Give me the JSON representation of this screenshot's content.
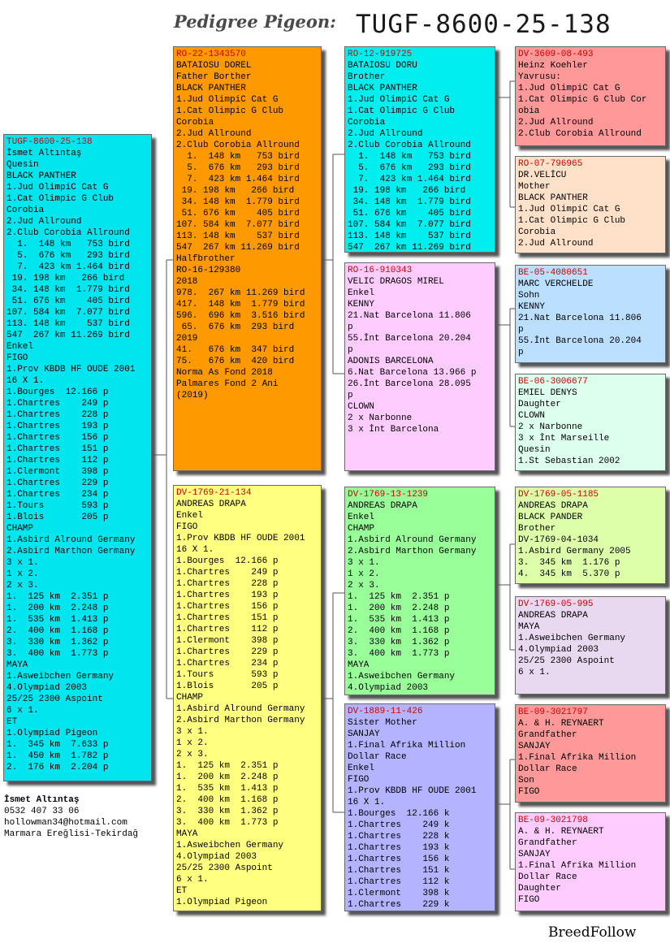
{
  "header": {
    "label": "Pedigree Pigeon:",
    "ring": "TUGF-8600-25-138"
  },
  "boxes": [
    {
      "id": "subject",
      "color": "#00e5ee",
      "ring": "TUGF-8600-25-138",
      "lines": [
        "İsmet Altıntaş",
        "Quesin",
        "BLACK PANTHER",
        "1.Jud OlimpiC Cat G",
        "1.Cat Olimpic G Club",
        "Corobia",
        "2.Jud Allround",
        "2.Club Corobia Allround",
        "  1.  148 km   753 bird",
        "  5.  676 km   293 bird",
        "  7.  423 km 1.464 bird",
        " 19. 198 km   266 bird",
        " 34. 148 km  1.779 bird",
        " 51. 676 km    405 bird",
        "107. 584 km  7.077 bird",
        "113. 148 km    537 bird",
        "547  267 km 11.269 bird",
        "Enkel",
        "FIGO",
        "1.Prov KBDB HF OUDE 2001",
        "16 X 1.",
        "1.Bourges  12.166 p",
        "1.Chartres    249 p",
        "1.Chartres    228 p",
        "1.Chartres    193 p",
        "1.Chartres    156 p",
        "1.Chartres    151 p",
        "1.Chartres    112 p",
        "1.Clermont    398 p",
        "1.Chartres    229 p",
        "1.Chartres    234 p",
        "1.Tours       593 p",
        "1.Blois       205 p",
        "CHAMP",
        "1.Asbird Alround Germany",
        "2.Asbird Marthon Germany",
        "3 x 1.",
        "1 x 2.",
        "2 x 3.",
        "1.  125 km  2.351 p",
        "1.  200 km  2.248 p",
        "1.  535 km  1.413 p",
        "2.  400 km  1.168 p",
        "3.  330 km  1.362 p",
        "3.  400 km  1.773 p",
        "MAYA",
        "1.Asweibchen Germany",
        "4.Olympiad 2003",
        "25/25 2300 Aspoint",
        "6 x 1.",
        "ET",
        "1.Olympiad Pigeon",
        "1.  345 km  7.633 p",
        "1.  450 km  1.782 p",
        "2.  176 km  2.204 p"
      ]
    },
    {
      "id": "sire",
      "color": "#ff9900",
      "ring": "RO-22-1343570",
      "lines": [
        "BATAIOSU DOREL",
        "Father Borther",
        "BLACK PANTHER",
        "1.Jud OlimpiC Cat G",
        "1.Cat Olimpic G Club",
        "Corobia",
        "2.Jud Allround",
        "2.Club Corobia Allround",
        "  1.  148 km   753 bird",
        "  5.  676 km   293 bird",
        "  7.  423 km 1.464 bird",
        " 19. 198 km   266 bird",
        " 34. 148 km  1.779 bird",
        " 51. 676 km    405 bird",
        "107. 584 km  7.077 bird",
        "113. 148 km    537 bird",
        "547  267 km 11.269 bird",
        "Halfbrother",
        "RO-16-129380",
        "2018",
        "978.  267 km 11.269 bird",
        "417.  148 km  1.779 bird",
        "596.  696 km  3.516 bird",
        " 65.  676 km  293 bird",
        "2019",
        "41.   676 km  347 bird",
        "75.   676 km  420 bird",
        "Norma As Fond 2018",
        "Palmares Fond 2 Ani",
        "(2019)"
      ]
    },
    {
      "id": "dam",
      "color": "#ffff80",
      "ring": "DV-1769-21-134",
      "lines": [
        "ANDREAS DRAPA",
        "Enkel",
        "FIGO",
        "1.Prov KBDB HF OUDE 2001",
        "16 X 1.",
        "1.Bourges  12.166 p",
        "1.Chartres    249 p",
        "1.Chartres    228 p",
        "1.Chartres    193 p",
        "1.Chartres    156 p",
        "1.Chartres    151 p",
        "1.Chartres    112 p",
        "1.Clermont    398 p",
        "1.Chartres    229 p",
        "1.Chartres    234 p",
        "1.Tours       593 p",
        "1.Blois       205 p",
        "CHAMP",
        "1.Asbird Alround Germany",
        "2.Asbird Marthon Germany",
        "3 x 1.",
        "1 x 2.",
        "2 x 3.",
        "1.  125 km  2.351 p",
        "1.  200 km  2.248 p",
        "1.  535 km  1.413 p",
        "2.  400 km  1.168 p",
        "3.  330 km  1.362 p",
        "3.  400 km  1.773 p",
        "MAYA",
        "1.Asweibchen Germany",
        "4.Olympiad 2003",
        "25/25 2300 Aspoint",
        "6 x 1.",
        "ET",
        "1.Olympiad Pigeon"
      ]
    },
    {
      "id": "ss",
      "color": "#00eeee",
      "ring": "RO-12-919725",
      "lines": [
        "BATAIOSU DORU",
        "Brother",
        "BLACK PANTHER",
        "1.Jud OlimpiC Cat G",
        "1.Cat Olimpic G Club",
        "Corobia",
        "2.Jud Allround",
        "2.Club Corobia Allround",
        "  1.  148 km   753 bird",
        "  5.  676 km   293 bird",
        "  7.  423 km 1.464 bird",
        " 19. 198 km   266 bird",
        " 34. 148 km  1.779 bird",
        " 51. 676 km    405 bird",
        "107. 584 km  7.077 bird",
        "113. 148 km    537 bird",
        "547  267 km 11.269 bird"
      ]
    },
    {
      "id": "sd",
      "color": "#ffccff",
      "ring": "RO-16-910343",
      "lines": [
        "VELIC DRAGOS MIREL",
        "Enkel",
        "KENNY",
        "21.Nat Barcelona 11.806",
        "p",
        "55.İnt Barcelona 20.204",
        "p",
        "ADONIS BARCELONA",
        "6.Nat Barcelona 13.966 p",
        "26.İnt Barcelona 28.095",
        "p",
        "CLOWN",
        "2 x Narbonne",
        "3 x İnt Barcelona"
      ]
    },
    {
      "id": "ds",
      "color": "#99ff99",
      "ring": "DV-1769-13-1239",
      "lines": [
        "ANDREAS DRAPA",
        "Enkel",
        "CHAMP",
        "1.Asbird Alround Germany",
        "2.Asbird Marthon Germany",
        "3 x 1.",
        "1 x 2.",
        "2 x 3.",
        "1.  125 km  2.351 p",
        "1.  200 km  2.248 p",
        "1.  535 km  1.413 p",
        "2.  400 km  1.168 p",
        "3.  330 km  1.362 p",
        "3.  400 km  1.773 p",
        "MAYA",
        "1.Asweibchen Germany",
        "4.Olympiad 2003"
      ]
    },
    {
      "id": "dd",
      "color": "#b3b3ff",
      "ring": "DV-1889-11-426",
      "lines": [
        "Sister Mother",
        "SANJAY",
        "1.Final Afrika Million",
        "Dollar Race",
        "Enkel",
        "FIGO",
        "1.Prov KBDB HF OUDE 2001",
        "16 X 1.",
        "1.Bourges  12.166 k",
        "1.Chartres    249 k",
        "1.Chartres    228 k",
        "1.Chartres    193 k",
        "1.Chartres    156 k",
        "1.Chartres    151 k",
        "1.Chartres    112 k",
        "1.Clermont    398 k",
        "1.Chartres    229 k"
      ]
    },
    {
      "id": "sss",
      "color": "#ff9999",
      "ring": "DV-3609-08-493",
      "lines": [
        "Heinz Koehler",
        "Yavrusu:",
        "1.Jud OlimpiC Cat G",
        "1.Cat Olimpic G Club Cor",
        "obia",
        "2.Jud Allround",
        "2.Club Corobia Allround"
      ]
    },
    {
      "id": "ssd",
      "color": "#ffe0c8",
      "ring": "RO-07-796965",
      "lines": [
        "DR.VELİCU",
        "Mother",
        "BLACK PANTHER",
        "1.Jud OlimpiC Cat G",
        "1.Cat Olimpic G Club",
        "Corobia",
        "2.Jud Allround"
      ]
    },
    {
      "id": "sds",
      "color": "#bbdfff",
      "ring": "BE-05-4080651",
      "lines": [
        "MARC VERCHELDE",
        "Sohn",
        "KENNY",
        "21.Nat Barcelona 11.806",
        "p",
        "55.İnt Barcelona 20.204",
        "p"
      ]
    },
    {
      "id": "sdd",
      "color": "#ddffee",
      "ring": "BE-06-3006677",
      "lines": [
        "EMIEL DENYS",
        "Daughter",
        "CLOWN",
        "2 x Narbonne",
        "3 x İnt Marseille",
        "Quesin",
        "1.St Sebastian 2002"
      ]
    },
    {
      "id": "dss",
      "color": "#ddffaa",
      "ring": "DV-1769-05-1185",
      "lines": [
        "ANDREAS DRAPA",
        "BLACK PANDER",
        "Brother",
        "DV-1769-04-1034",
        "1.Asbird Germany 2005",
        "3.  345 km  1.176 p",
        "4.  345 km  5.370 p"
      ]
    },
    {
      "id": "dsd",
      "color": "#e8d8f0",
      "ring": "DV-1769-05-995",
      "lines": [
        "ANDREAS DRAPA",
        "MAYA",
        "1.Asweibchen Germany",
        "4.Olympiad 2003",
        "25/25 2300 Aspoint",
        "6 x 1."
      ]
    },
    {
      "id": "dds",
      "color": "#ff9999",
      "ring": "BE-09-3021797",
      "lines": [
        "A. & H. REYNAERT",
        "Grandfather",
        "SANJAY",
        "1.Final Afrika Million",
        "Dollar Race",
        "Son",
        "FIGO"
      ]
    },
    {
      "id": "ddd",
      "color": "#ffccff",
      "ring": "BE-09-3021798",
      "lines": [
        "A. & H. REYNAERT",
        "Grandfather",
        "SANJAY",
        "1.Final Afrika Million",
        "Dollar Race",
        "Daughter",
        "FIGO"
      ]
    }
  ],
  "owner": {
    "name": "İsmet Altıntaş",
    "phone": "0532 407 33 06",
    "email": "hollowman34@hotmail.com",
    "city": "Marmara Ereğlisi-Tekirdağ"
  },
  "brand": "BreedFollow"
}
